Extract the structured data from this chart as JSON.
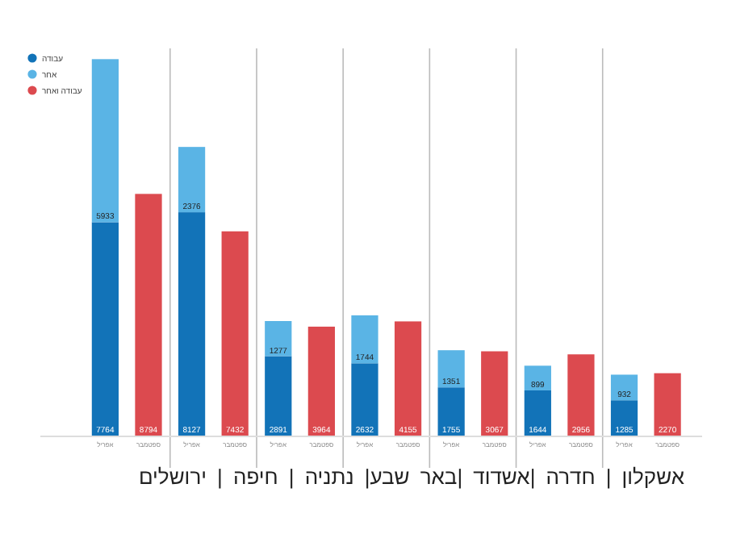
{
  "chart_data": {
    "type": "bar",
    "stacked": true,
    "data_labels": true,
    "legend": "top left",
    "categories": [
      "אפריל",
      "ספטמבר",
      "אפריל",
      "ספטמבר",
      "אפריל",
      "ספטמבר",
      "אפריל",
      "ספטמבר",
      "אפריל",
      "ספטמבר",
      "אפריל",
      "ספטמבר",
      "אפריל",
      "ספטמבר"
    ],
    "series": [
      {
        "name": "עבודה",
        "color": "#1273b8",
        "values": [
          7764,
          null,
          8127,
          null,
          2891,
          null,
          2632,
          null,
          1755,
          null,
          1644,
          null,
          1285,
          null
        ]
      },
      {
        "name": "אחר",
        "color": "#5ab4e5",
        "values": [
          5933,
          null,
          2376,
          null,
          1277,
          null,
          1744,
          null,
          1351,
          null,
          899,
          null,
          932,
          null
        ]
      },
      {
        "name": "עבודה ואחר",
        "color": "#dc4a4f",
        "values": [
          null,
          8794,
          null,
          7432,
          null,
          3964,
          null,
          4155,
          null,
          3067,
          null,
          2956,
          null,
          2270
        ]
      }
    ],
    "annotations": [
      "אשקלון | חדרה |אשדוד |באר שבע| נתניה | חיפה | ירושלים"
    ]
  }
}
